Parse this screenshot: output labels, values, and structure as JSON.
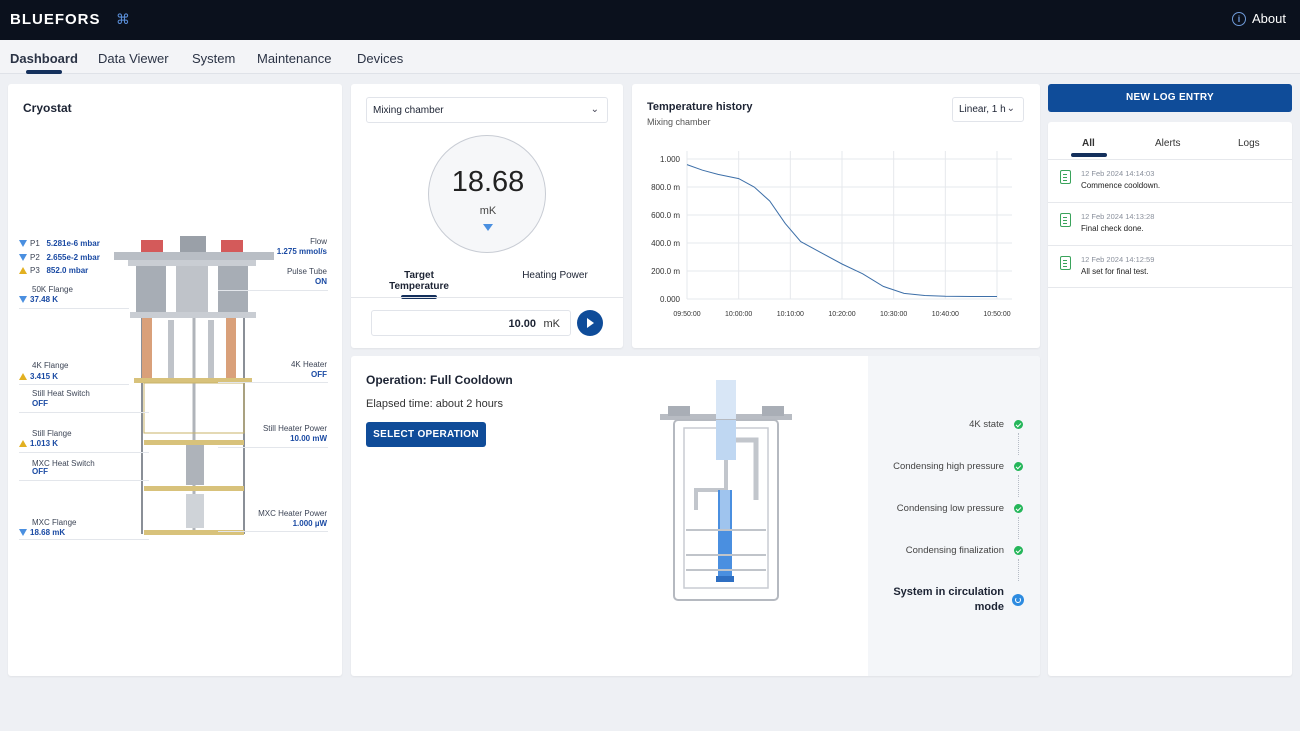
{
  "app": {
    "logo": "BLUEFORS",
    "logo_mark": "⌘",
    "about_label": "About"
  },
  "tabs": [
    {
      "label": "Dashboard",
      "active": true
    },
    {
      "label": "Data Viewer"
    },
    {
      "label": "System"
    },
    {
      "label": "Maintenance"
    },
    {
      "label": "Devices"
    }
  ],
  "cryostat": {
    "title": "Cryostat",
    "sensors_left": [
      {
        "label": "P1",
        "value": "5.281e-6 mbar",
        "status": "down"
      },
      {
        "label": "P2",
        "value": "2.655e-2 mbar",
        "status": "down"
      },
      {
        "label": "P3",
        "value": "852.0 mbar",
        "status": "warn"
      },
      {
        "label": "50K Flange",
        "value": "37.48 K",
        "status": "down"
      },
      {
        "label": "4K Flange",
        "value": "3.415 K",
        "status": "warn"
      },
      {
        "label": "Still Heat Switch",
        "value": "OFF",
        "status": "none"
      },
      {
        "label": "Still Flange",
        "value": "1.013 K",
        "status": "warn"
      },
      {
        "label": "MXC Heat Switch",
        "value": "OFF",
        "status": "none"
      },
      {
        "label": "MXC Flange",
        "value": "18.68 mK",
        "status": "down"
      }
    ],
    "sensors_right": [
      {
        "label": "Flow",
        "value": "1.275 mmol/s"
      },
      {
        "label": "Pulse Tube",
        "value": "ON"
      },
      {
        "label": "4K Heater",
        "value": "OFF"
      },
      {
        "label": "Still Heater Power",
        "value": "10.00 mW"
      },
      {
        "label": "MXC Heater Power",
        "value": "1.000 µW"
      }
    ]
  },
  "mixing": {
    "selected": "Mixing chamber",
    "reading": "18.68",
    "unit": "mK",
    "tabs": [
      "Target Temperature",
      "Heating Power"
    ],
    "target_value": "10.00",
    "target_unit": "mK"
  },
  "history": {
    "title": "Temperature history",
    "subtitle": "Mixing chamber",
    "scale": "Linear, 1 h"
  },
  "chart_data": {
    "type": "line",
    "title": "Temperature history",
    "x": [
      "09:50:00",
      "10:00:00",
      "10:10:00",
      "10:20:00",
      "10:30:00",
      "10:40:00",
      "10:50:00"
    ],
    "yticks": [
      "1.000",
      "800.0 m",
      "600.0 m",
      "400.0 m",
      "200.0 m",
      "0.000"
    ],
    "ylim": [
      0,
      1.0
    ],
    "grid": true,
    "series": [
      {
        "points": [
          [
            "09:50:00",
            0.96
          ],
          [
            "09:53:00",
            0.92
          ],
          [
            "09:56:00",
            0.89
          ],
          [
            "10:00:00",
            0.86
          ],
          [
            "10:03:00",
            0.8
          ],
          [
            "10:06:00",
            0.7
          ],
          [
            "10:09:00",
            0.54
          ],
          [
            "10:12:00",
            0.41
          ],
          [
            "10:16:00",
            0.33
          ],
          [
            "10:20:00",
            0.25
          ],
          [
            "10:24:00",
            0.18
          ],
          [
            "10:28:00",
            0.09
          ],
          [
            "10:32:00",
            0.04
          ],
          [
            "10:36:00",
            0.025
          ],
          [
            "10:40:00",
            0.02
          ],
          [
            "10:45:00",
            0.018
          ],
          [
            "10:50:00",
            0.018
          ]
        ]
      }
    ]
  },
  "log": {
    "new_entry_label": "NEW LOG ENTRY",
    "tabs": [
      "All",
      "Alerts",
      "Logs"
    ],
    "items": [
      {
        "time": "12 Feb 2024 14:14:03",
        "message": "Commence cooldown."
      },
      {
        "time": "12 Feb 2024 14:13:28",
        "message": "Final check done."
      },
      {
        "time": "12 Feb 2024 14:12:59",
        "message": "All set for final test."
      }
    ]
  },
  "operation": {
    "title": "Operation: Full Cooldown",
    "elapsed": "Elapsed time: about 2 hours",
    "button_label": "SELECT OPERATION",
    "steps": [
      {
        "label": "4K state",
        "done": true
      },
      {
        "label": "Condensing high pressure",
        "done": true
      },
      {
        "label": "Condensing low pressure",
        "done": true
      },
      {
        "label": "Condensing finalization",
        "done": true
      },
      {
        "label": "System in circulation mode",
        "done": false
      }
    ]
  }
}
